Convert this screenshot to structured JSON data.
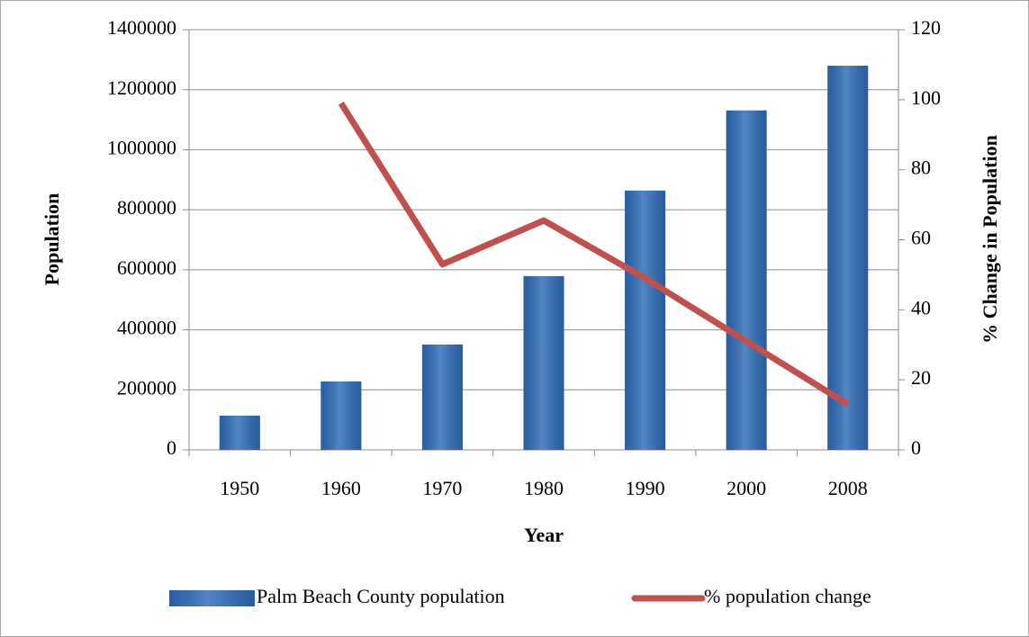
{
  "chart_data": {
    "type": "bar",
    "x_label": "Year",
    "y_label": "Population",
    "y2_label": "% Change in Population",
    "categories": [
      "1950",
      "1960",
      "1970",
      "1980",
      "1990",
      "2000",
      "2008"
    ],
    "series": [
      {
        "name": "Palm Beach County population",
        "type": "bar",
        "color": "#2e6bb8",
        "values": [
          114000,
          228000,
          351000,
          579000,
          864000,
          1131000,
          1280000
        ]
      },
      {
        "name": "% population change",
        "type": "line",
        "axis": "y2",
        "color": "#c0504d",
        "values": [
          null,
          99,
          53,
          65.5,
          49,
          31,
          13
        ]
      }
    ],
    "ylim": [
      0,
      1400000
    ],
    "yticks": [
      0,
      200000,
      400000,
      600000,
      800000,
      1000000,
      1200000,
      1400000
    ],
    "y2lim": [
      0,
      120
    ],
    "y2ticks": [
      0,
      20,
      40,
      60,
      80,
      100,
      120
    ],
    "grid": true,
    "legend": "bottom"
  }
}
